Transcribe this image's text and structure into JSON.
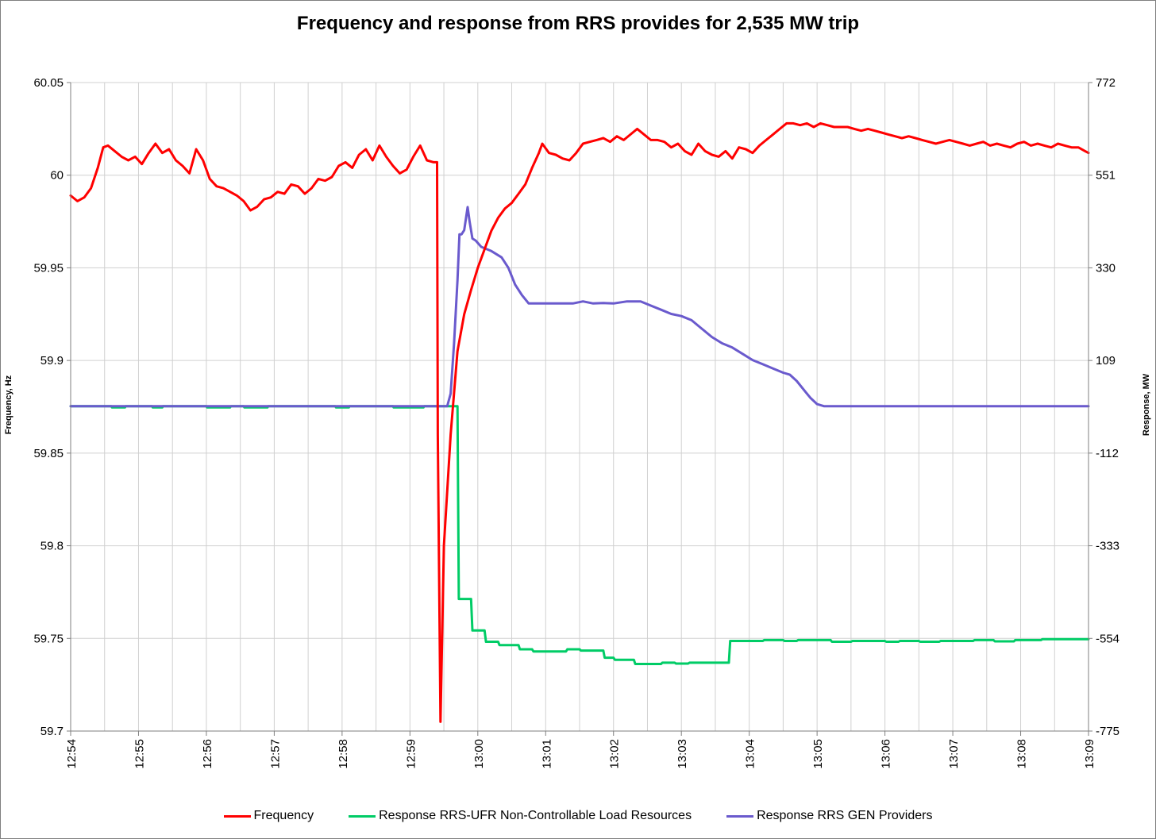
{
  "chart_data": {
    "type": "line",
    "title": "Frequency and response from RRS provides for 2,535 MW trip",
    "xlabel": "",
    "ylabel_left": "Frequency, Hz",
    "ylabel_right": "Response, MW",
    "x_ticks": [
      "12:54",
      "12:55",
      "12:56",
      "12:57",
      "12:58",
      "12:59",
      "13:00",
      "13:01",
      "13:02",
      "13:03",
      "13:04",
      "13:05",
      "13:06",
      "13:07",
      "13:08",
      "13:09"
    ],
    "x_range_minutes": [
      0,
      15
    ],
    "y_left_ticks": [
      "59.7",
      "59.75",
      "59.8",
      "59.85",
      "59.9",
      "59.95",
      "60",
      "60.05"
    ],
    "y_left_range": [
      59.7,
      60.05
    ],
    "y_right_ticks": [
      "-775",
      "-554",
      "-333",
      "-112",
      "109",
      "330",
      "551",
      "772"
    ],
    "y_right_range": [
      -775,
      772
    ],
    "grid": true,
    "legend_position": "bottom",
    "series": [
      {
        "name": "Frequency",
        "color": "#ff0000",
        "axis": "left",
        "points": [
          [
            0.0,
            59.989
          ],
          [
            0.1,
            59.986
          ],
          [
            0.2,
            59.988
          ],
          [
            0.3,
            59.993
          ],
          [
            0.4,
            60.004
          ],
          [
            0.48,
            60.015
          ],
          [
            0.55,
            60.016
          ],
          [
            0.65,
            60.013
          ],
          [
            0.75,
            60.01
          ],
          [
            0.85,
            60.008
          ],
          [
            0.95,
            60.01
          ],
          [
            1.05,
            60.006
          ],
          [
            1.15,
            60.012
          ],
          [
            1.25,
            60.017
          ],
          [
            1.35,
            60.012
          ],
          [
            1.45,
            60.014
          ],
          [
            1.55,
            60.008
          ],
          [
            1.65,
            60.005
          ],
          [
            1.75,
            60.001
          ],
          [
            1.85,
            60.014
          ],
          [
            1.95,
            60.008
          ],
          [
            2.05,
            59.998
          ],
          [
            2.15,
            59.994
          ],
          [
            2.25,
            59.993
          ],
          [
            2.35,
            59.991
          ],
          [
            2.45,
            59.989
          ],
          [
            2.55,
            59.986
          ],
          [
            2.65,
            59.981
          ],
          [
            2.75,
            59.983
          ],
          [
            2.85,
            59.987
          ],
          [
            2.95,
            59.988
          ],
          [
            3.05,
            59.991
          ],
          [
            3.15,
            59.99
          ],
          [
            3.25,
            59.995
          ],
          [
            3.35,
            59.994
          ],
          [
            3.45,
            59.99
          ],
          [
            3.55,
            59.993
          ],
          [
            3.65,
            59.998
          ],
          [
            3.75,
            59.997
          ],
          [
            3.85,
            59.999
          ],
          [
            3.95,
            60.005
          ],
          [
            4.05,
            60.007
          ],
          [
            4.15,
            60.004
          ],
          [
            4.25,
            60.011
          ],
          [
            4.35,
            60.014
          ],
          [
            4.45,
            60.008
          ],
          [
            4.55,
            60.016
          ],
          [
            4.65,
            60.01
          ],
          [
            4.75,
            60.005
          ],
          [
            4.85,
            60.001
          ],
          [
            4.95,
            60.003
          ],
          [
            5.05,
            60.01
          ],
          [
            5.15,
            60.016
          ],
          [
            5.25,
            60.008
          ],
          [
            5.35,
            60.007
          ],
          [
            5.4,
            60.007
          ],
          [
            5.41,
            59.86
          ],
          [
            5.45,
            59.705
          ],
          [
            5.5,
            59.8
          ],
          [
            5.6,
            59.86
          ],
          [
            5.7,
            59.905
          ],
          [
            5.8,
            59.925
          ],
          [
            5.9,
            59.938
          ],
          [
            6.0,
            59.95
          ],
          [
            6.1,
            59.96
          ],
          [
            6.2,
            59.97
          ],
          [
            6.3,
            59.977
          ],
          [
            6.4,
            59.982
          ],
          [
            6.5,
            59.985
          ],
          [
            6.6,
            59.99
          ],
          [
            6.7,
            59.995
          ],
          [
            6.8,
            60.004
          ],
          [
            6.9,
            60.012
          ],
          [
            6.95,
            60.017
          ],
          [
            7.05,
            60.012
          ],
          [
            7.15,
            60.011
          ],
          [
            7.25,
            60.009
          ],
          [
            7.35,
            60.008
          ],
          [
            7.45,
            60.012
          ],
          [
            7.55,
            60.017
          ],
          [
            7.65,
            60.018
          ],
          [
            7.75,
            60.019
          ],
          [
            7.85,
            60.02
          ],
          [
            7.95,
            60.018
          ],
          [
            8.05,
            60.021
          ],
          [
            8.15,
            60.019
          ],
          [
            8.25,
            60.022
          ],
          [
            8.35,
            60.025
          ],
          [
            8.45,
            60.022
          ],
          [
            8.55,
            60.019
          ],
          [
            8.65,
            60.019
          ],
          [
            8.75,
            60.018
          ],
          [
            8.85,
            60.015
          ],
          [
            8.95,
            60.017
          ],
          [
            9.05,
            60.013
          ],
          [
            9.15,
            60.011
          ],
          [
            9.25,
            60.017
          ],
          [
            9.35,
            60.013
          ],
          [
            9.45,
            60.011
          ],
          [
            9.55,
            60.01
          ],
          [
            9.65,
            60.013
          ],
          [
            9.75,
            60.009
          ],
          [
            9.85,
            60.015
          ],
          [
            9.95,
            60.014
          ],
          [
            10.05,
            60.012
          ],
          [
            10.15,
            60.016
          ],
          [
            10.25,
            60.019
          ],
          [
            10.35,
            60.022
          ],
          [
            10.45,
            60.025
          ],
          [
            10.55,
            60.028
          ],
          [
            10.65,
            60.028
          ],
          [
            10.75,
            60.027
          ],
          [
            10.85,
            60.028
          ],
          [
            10.95,
            60.026
          ],
          [
            11.05,
            60.028
          ],
          [
            11.15,
            60.027
          ],
          [
            11.25,
            60.026
          ],
          [
            11.35,
            60.026
          ],
          [
            11.45,
            60.026
          ],
          [
            11.55,
            60.025
          ],
          [
            11.65,
            60.024
          ],
          [
            11.75,
            60.025
          ],
          [
            11.85,
            60.024
          ],
          [
            11.95,
            60.023
          ],
          [
            12.05,
            60.022
          ],
          [
            12.15,
            60.021
          ],
          [
            12.25,
            60.02
          ],
          [
            12.35,
            60.021
          ],
          [
            12.45,
            60.02
          ],
          [
            12.55,
            60.019
          ],
          [
            12.65,
            60.018
          ],
          [
            12.75,
            60.017
          ],
          [
            12.85,
            60.018
          ],
          [
            12.95,
            60.019
          ],
          [
            13.05,
            60.018
          ],
          [
            13.15,
            60.017
          ],
          [
            13.25,
            60.016
          ],
          [
            13.35,
            60.017
          ],
          [
            13.45,
            60.018
          ],
          [
            13.55,
            60.016
          ],
          [
            13.65,
            60.017
          ],
          [
            13.75,
            60.016
          ],
          [
            13.85,
            60.015
          ],
          [
            13.95,
            60.017
          ],
          [
            14.05,
            60.018
          ],
          [
            14.15,
            60.016
          ],
          [
            14.25,
            60.017
          ],
          [
            14.35,
            60.016
          ],
          [
            14.45,
            60.015
          ],
          [
            14.55,
            60.017
          ],
          [
            14.65,
            60.016
          ],
          [
            14.75,
            60.015
          ],
          [
            14.85,
            60.015
          ],
          [
            14.95,
            60.013
          ],
          [
            15.0,
            60.012
          ]
        ]
      },
      {
        "name": "Response RRS-UFR Non-Controllable Load Resources",
        "color": "#00cc66",
        "axis": "right",
        "points": [
          [
            0.0,
            0
          ],
          [
            0.6,
            0
          ],
          [
            0.61,
            -3
          ],
          [
            0.8,
            -3
          ],
          [
            0.81,
            0
          ],
          [
            1.2,
            0
          ],
          [
            1.21,
            -3
          ],
          [
            1.35,
            -3
          ],
          [
            1.36,
            0
          ],
          [
            2.0,
            0
          ],
          [
            2.01,
            -3
          ],
          [
            2.35,
            -3
          ],
          [
            2.36,
            0
          ],
          [
            2.55,
            0
          ],
          [
            2.56,
            -3
          ],
          [
            2.9,
            -3
          ],
          [
            2.91,
            0
          ],
          [
            3.9,
            0
          ],
          [
            3.91,
            -3
          ],
          [
            4.1,
            -3
          ],
          [
            4.11,
            0
          ],
          [
            4.75,
            0
          ],
          [
            4.76,
            -3
          ],
          [
            5.2,
            -3
          ],
          [
            5.21,
            0
          ],
          [
            5.7,
            0
          ],
          [
            5.72,
            -460
          ],
          [
            5.9,
            -460
          ],
          [
            5.92,
            -535
          ],
          [
            6.1,
            -535
          ],
          [
            6.12,
            -562
          ],
          [
            6.3,
            -562
          ],
          [
            6.32,
            -570
          ],
          [
            6.6,
            -570
          ],
          [
            6.62,
            -580
          ],
          [
            6.8,
            -580
          ],
          [
            6.82,
            -585
          ],
          [
            7.3,
            -585
          ],
          [
            7.32,
            -580
          ],
          [
            7.5,
            -580
          ],
          [
            7.52,
            -583
          ],
          [
            7.85,
            -583
          ],
          [
            7.87,
            -600
          ],
          [
            8.0,
            -600
          ],
          [
            8.02,
            -605
          ],
          [
            8.3,
            -605
          ],
          [
            8.32,
            -615
          ],
          [
            8.7,
            -615
          ],
          [
            8.72,
            -612
          ],
          [
            8.9,
            -612
          ],
          [
            8.92,
            -614
          ],
          [
            9.1,
            -614
          ],
          [
            9.12,
            -612
          ],
          [
            9.7,
            -612
          ],
          [
            9.72,
            -560
          ],
          [
            10.2,
            -560
          ],
          [
            10.22,
            -558
          ],
          [
            10.5,
            -558
          ],
          [
            10.52,
            -560
          ],
          [
            10.7,
            -560
          ],
          [
            10.72,
            -558
          ],
          [
            11.2,
            -558
          ],
          [
            11.22,
            -562
          ],
          [
            11.5,
            -562
          ],
          [
            11.52,
            -560
          ],
          [
            12.0,
            -560
          ],
          [
            12.02,
            -562
          ],
          [
            12.2,
            -562
          ],
          [
            12.22,
            -560
          ],
          [
            12.5,
            -560
          ],
          [
            12.52,
            -562
          ],
          [
            12.8,
            -562
          ],
          [
            12.82,
            -560
          ],
          [
            13.3,
            -560
          ],
          [
            13.32,
            -558
          ],
          [
            13.6,
            -558
          ],
          [
            13.62,
            -561
          ],
          [
            13.9,
            -561
          ],
          [
            13.92,
            -558
          ],
          [
            14.3,
            -558
          ],
          [
            14.32,
            -556
          ],
          [
            15.0,
            -556
          ]
        ]
      },
      {
        "name": "Response RRS GEN Providers",
        "color": "#6a5acd",
        "axis": "right",
        "points": [
          [
            0.0,
            0
          ],
          [
            5.55,
            0
          ],
          [
            5.6,
            30
          ],
          [
            5.65,
            150
          ],
          [
            5.7,
            300
          ],
          [
            5.73,
            410
          ],
          [
            5.76,
            410
          ],
          [
            5.8,
            420
          ],
          [
            5.85,
            475
          ],
          [
            5.88,
            440
          ],
          [
            5.92,
            400
          ],
          [
            5.97,
            395
          ],
          [
            6.05,
            380
          ],
          [
            6.2,
            370
          ],
          [
            6.35,
            355
          ],
          [
            6.45,
            330
          ],
          [
            6.55,
            290
          ],
          [
            6.65,
            265
          ],
          [
            6.75,
            245
          ],
          [
            6.9,
            245
          ],
          [
            7.2,
            245
          ],
          [
            7.4,
            245
          ],
          [
            7.55,
            250
          ],
          [
            7.7,
            245
          ],
          [
            7.85,
            246
          ],
          [
            8.0,
            245
          ],
          [
            8.2,
            250
          ],
          [
            8.4,
            250
          ],
          [
            8.55,
            240
          ],
          [
            8.7,
            230
          ],
          [
            8.85,
            220
          ],
          [
            9.0,
            215
          ],
          [
            9.15,
            205
          ],
          [
            9.3,
            185
          ],
          [
            9.45,
            165
          ],
          [
            9.6,
            150
          ],
          [
            9.75,
            140
          ],
          [
            9.9,
            125
          ],
          [
            10.05,
            110
          ],
          [
            10.2,
            100
          ],
          [
            10.35,
            90
          ],
          [
            10.5,
            80
          ],
          [
            10.6,
            75
          ],
          [
            10.7,
            60
          ],
          [
            10.8,
            40
          ],
          [
            10.9,
            20
          ],
          [
            11.0,
            5
          ],
          [
            11.1,
            0
          ],
          [
            15.0,
            0
          ]
        ]
      }
    ]
  }
}
